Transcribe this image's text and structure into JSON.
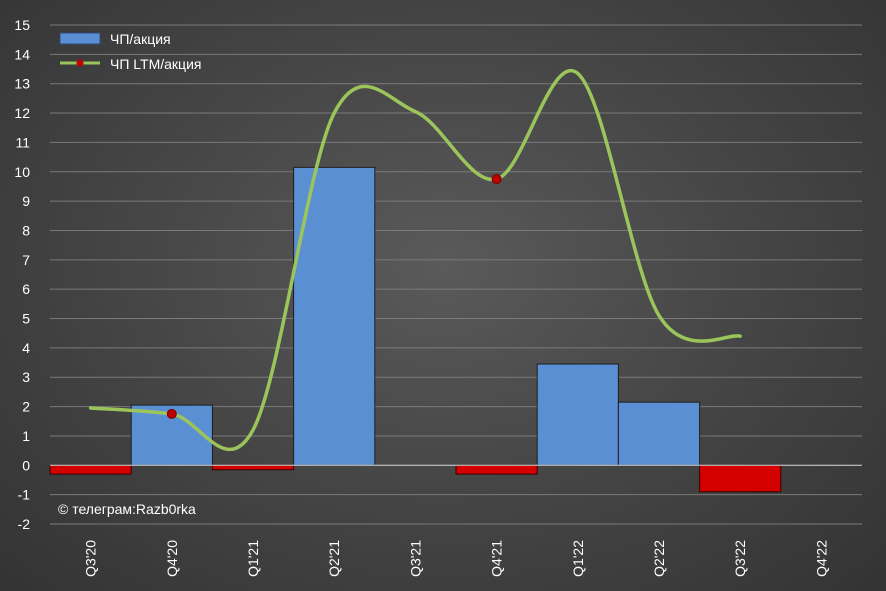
{
  "chart_data": {
    "type": "bar",
    "categories": [
      "Q3'20",
      "Q4'20",
      "Q1'21",
      "Q2'21",
      "Q3'21",
      "Q4'21",
      "Q1'22",
      "Q2'22",
      "Q3'22",
      "Q4'22"
    ],
    "series": [
      {
        "name": "ЧП/акция",
        "type": "bar",
        "values": [
          -0.3,
          2.05,
          -0.15,
          10.15,
          0,
          -0.3,
          3.45,
          2.15,
          -0.9,
          null
        ]
      },
      {
        "name": "ЧП LTM/акция",
        "type": "line",
        "smooth": true,
        "values": [
          1.95,
          1.75,
          1.2,
          12.0,
          12.05,
          9.75,
          13.35,
          5.1,
          4.4,
          null
        ],
        "markers": [
          1,
          5
        ]
      }
    ],
    "ylim": [
      -2,
      15
    ],
    "yticks": [
      -2,
      -1,
      0,
      1,
      2,
      3,
      4,
      5,
      6,
      7,
      8,
      9,
      10,
      11,
      12,
      13,
      14,
      15
    ],
    "grid": true,
    "legend": "top-left",
    "colors": {
      "positive_bar": "#5b8fd3",
      "negative_bar": "#d40000",
      "line": "#9bc55a",
      "marker": "#c00000",
      "grid": "#7a7a7a"
    }
  },
  "watermark": "© телеграм:Razb0rka"
}
